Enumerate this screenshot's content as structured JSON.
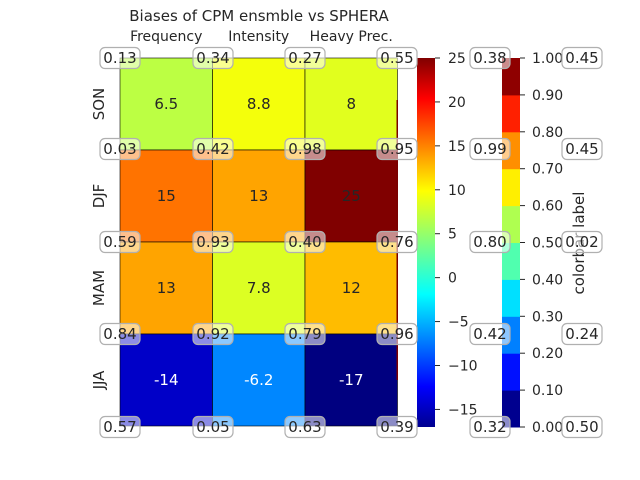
{
  "chart_data": {
    "type": "heatmap",
    "title": "Biases of CPM ensmble vs SPHERA",
    "columns": [
      "Frequency",
      "Intensity",
      "Heavy Prec."
    ],
    "rows": [
      "SON",
      "DJF",
      "MAM",
      "JJA"
    ],
    "values": [
      [
        6.5,
        8.8,
        8
      ],
      [
        15,
        13,
        25
      ],
      [
        13,
        7.8,
        12
      ],
      [
        -14,
        -6.2,
        -17
      ]
    ],
    "cell_labels": [
      [
        "6.5",
        "8.8",
        "8"
      ],
      [
        "15",
        "13",
        "25"
      ],
      [
        "13",
        "7.8",
        "12"
      ],
      [
        "-14",
        "-6.2",
        "-17"
      ]
    ],
    "value_range": [
      -17,
      25
    ],
    "colormap": "jet",
    "colorbar_main": {
      "ticks": [
        -15,
        -10,
        -5,
        0,
        5,
        10,
        15,
        20,
        25
      ],
      "tick_labels": [
        "−15",
        "−10",
        "−5",
        "0",
        "5",
        "10",
        "15",
        "20",
        "25"
      ]
    },
    "colorbar_discrete": {
      "label": "colorbar label",
      "range": [
        0,
        1
      ],
      "colors": [
        "#00008f",
        "#0010ff",
        "#0080ff",
        "#00e0ff",
        "#50ffaf",
        "#afff50",
        "#ffef00",
        "#ff8f00",
        "#ff2000",
        "#8f0000"
      ],
      "tick_labels": [
        "0.00",
        "0.10",
        "0.20",
        "0.30",
        "0.40",
        "0.50",
        "0.60",
        "0.70",
        "0.80",
        "0.90",
        "1.00"
      ]
    },
    "annotations": {
      "row_lines": [
        [
          "0.13",
          "0.34",
          "0.27",
          "0.55",
          "0.38",
          "0.45"
        ],
        [
          "0.03",
          "0.42",
          "0.98",
          "0.95",
          "0.99",
          "0.45"
        ],
        [
          "0.59",
          "0.93",
          "0.40",
          "0.76",
          "0.80",
          "0.02"
        ],
        [
          "0.84",
          "0.92",
          "0.79",
          "0.96",
          "0.42",
          "0.24"
        ],
        [
          "0.57",
          "0.05",
          "0.63",
          "0.39",
          "0.32",
          "0.50"
        ]
      ]
    }
  }
}
